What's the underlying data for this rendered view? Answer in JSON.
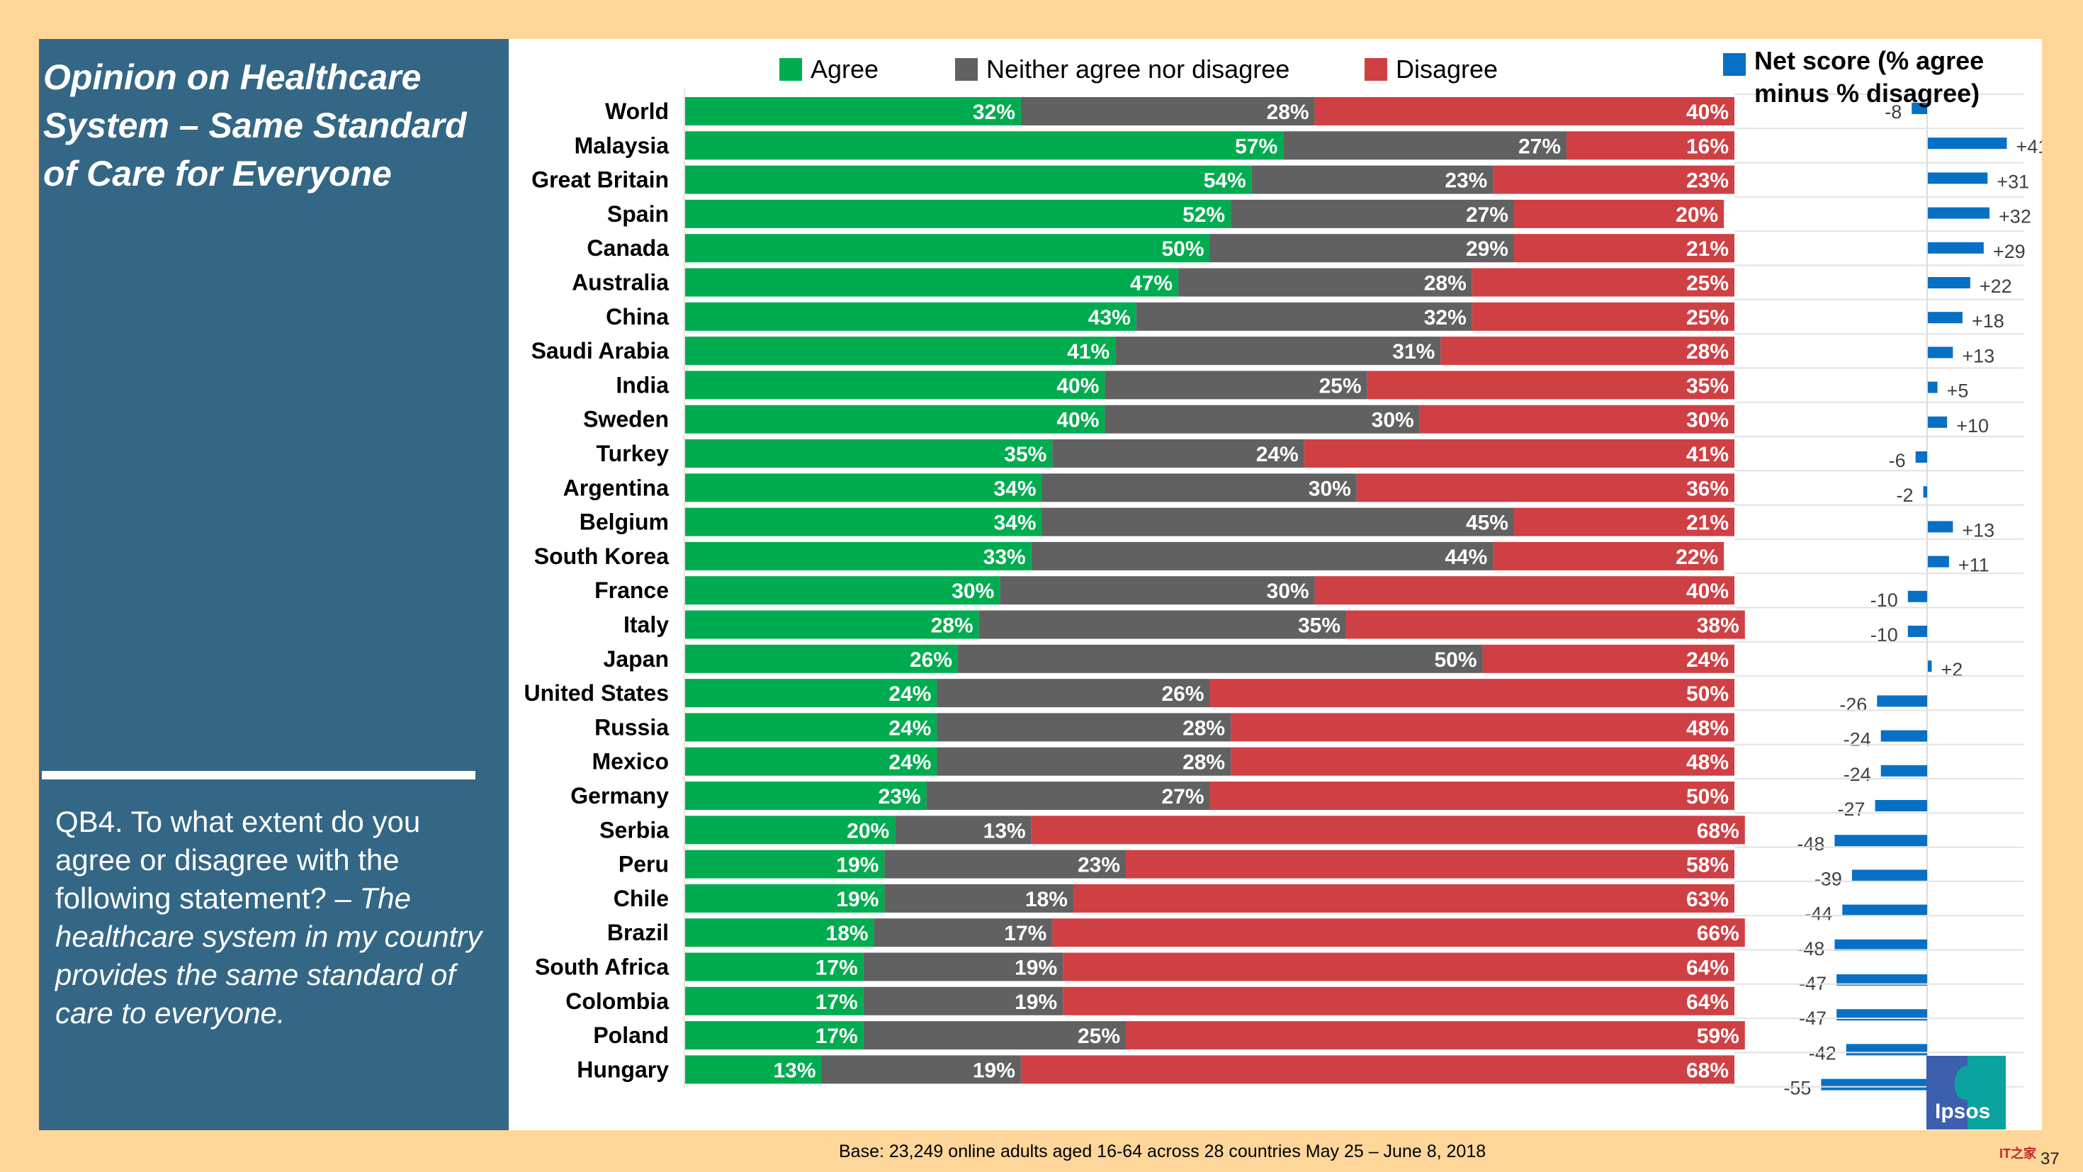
{
  "slide": {
    "title": "Opinion on Healthcare System – Same Standard of Care for Everyone",
    "question_prefix": "QB4. To what extent do you agree or disagree with the following statement? – ",
    "question_statement": "The healthcare system in my country provides the same standard of care to everyone.",
    "base_note": "Base: 23,249 online adults aged 16-64 across 28 countries  May 25 – June 8, 2018",
    "logo_text": "Ipsos",
    "page_number": "37",
    "watermark": "IT之家"
  },
  "colors": {
    "agree": "#00AC4F",
    "neither": "#616161",
    "disagree": "#CF4044",
    "net": "#0870C4",
    "panel": "#336785",
    "background": "#FED699"
  },
  "chart_data": [
    {
      "type": "bar",
      "orientation": "horizontal",
      "stacked": true,
      "title": "",
      "legend": [
        "Agree",
        "Neither agree nor disagree",
        "Disagree"
      ],
      "legend_position": "top",
      "categories": [
        "World",
        "Malaysia",
        "Great Britain",
        "Spain",
        "Canada",
        "Australia",
        "China",
        "Saudi Arabia",
        "India",
        "Sweden",
        "Turkey",
        "Argentina",
        "Belgium",
        "South Korea",
        "France",
        "Italy",
        "Japan",
        "United States",
        "Russia",
        "Mexico",
        "Germany",
        "Serbia",
        "Peru",
        "Chile",
        "Brazil",
        "South Africa",
        "Colombia",
        "Poland",
        "Hungary"
      ],
      "series": [
        {
          "name": "Agree",
          "values": [
            32,
            57,
            54,
            52,
            50,
            47,
            43,
            41,
            40,
            40,
            35,
            34,
            34,
            33,
            30,
            28,
            26,
            24,
            24,
            24,
            23,
            20,
            19,
            19,
            18,
            17,
            17,
            17,
            13
          ]
        },
        {
          "name": "Neither agree nor disagree",
          "values": [
            28,
            27,
            23,
            27,
            29,
            28,
            32,
            31,
            25,
            30,
            24,
            30,
            45,
            44,
            30,
            35,
            50,
            26,
            28,
            28,
            27,
            13,
            23,
            18,
            17,
            19,
            19,
            25,
            19
          ]
        },
        {
          "name": "Disagree",
          "values": [
            40,
            16,
            23,
            20,
            21,
            25,
            25,
            28,
            35,
            30,
            41,
            36,
            21,
            22,
            40,
            38,
            24,
            50,
            48,
            48,
            50,
            68,
            58,
            63,
            66,
            64,
            64,
            59,
            68
          ]
        }
      ],
      "value_suffix": "%",
      "xlim": [
        0,
        100
      ]
    },
    {
      "type": "bar",
      "orientation": "horizontal",
      "title": "Net score (% agree minus % disagree)",
      "legend": [
        "Net score (% agree minus % disagree)"
      ],
      "legend_position": "top",
      "categories": [
        "World",
        "Malaysia",
        "Great Britain",
        "Spain",
        "Canada",
        "Australia",
        "China",
        "Saudi Arabia",
        "India",
        "Sweden",
        "Turkey",
        "Argentina",
        "Belgium",
        "South Korea",
        "France",
        "Italy",
        "Japan",
        "United States",
        "Russia",
        "Mexico",
        "Germany",
        "Serbia",
        "Peru",
        "Chile",
        "Brazil",
        "South Africa",
        "Colombia",
        "Poland",
        "Hungary"
      ],
      "values": [
        -8,
        41,
        31,
        32,
        29,
        22,
        18,
        13,
        5,
        10,
        -6,
        -2,
        13,
        11,
        -10,
        -10,
        2,
        -26,
        -24,
        -24,
        -27,
        -48,
        -39,
        -44,
        -48,
        -47,
        -47,
        -42,
        -55
      ],
      "labels": [
        "-8",
        "+41",
        "+31",
        "+32",
        "+29",
        "+22",
        "+18",
        "+13",
        "+5",
        "+10",
        "-6",
        "-2",
        "+13",
        "+11",
        "-10",
        "-10",
        "+2",
        "-26",
        "-24",
        "-24",
        "-27",
        "-48",
        "-39",
        "-44",
        "-48",
        "-47",
        "-47",
        "-42",
        "-55"
      ],
      "xlim": [
        -100,
        50
      ],
      "grid": true
    }
  ]
}
